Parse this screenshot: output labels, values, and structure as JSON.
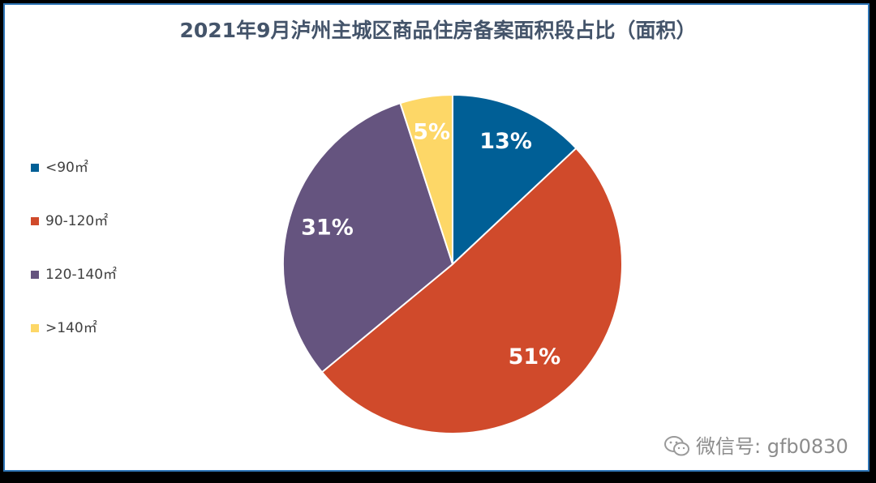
{
  "chart_data": {
    "type": "pie",
    "title": "2021年9月泸州主城区商品住房备案面积段占比（面积）",
    "categories": [
      "<90㎡",
      "90-120㎡",
      "120-140㎡",
      ">140㎡"
    ],
    "values": [
      13,
      51,
      31,
      5
    ],
    "labels": [
      "13%",
      "51%",
      "31%",
      "5%"
    ],
    "colors": [
      "#005f96",
      "#d04a2b",
      "#65547f",
      "#fdd767"
    ],
    "start_angle": "12 o'clock, clockwise",
    "legend_position": "left"
  },
  "watermark": {
    "text": "微信号: gfb0830",
    "icon": "wechat-icon"
  }
}
